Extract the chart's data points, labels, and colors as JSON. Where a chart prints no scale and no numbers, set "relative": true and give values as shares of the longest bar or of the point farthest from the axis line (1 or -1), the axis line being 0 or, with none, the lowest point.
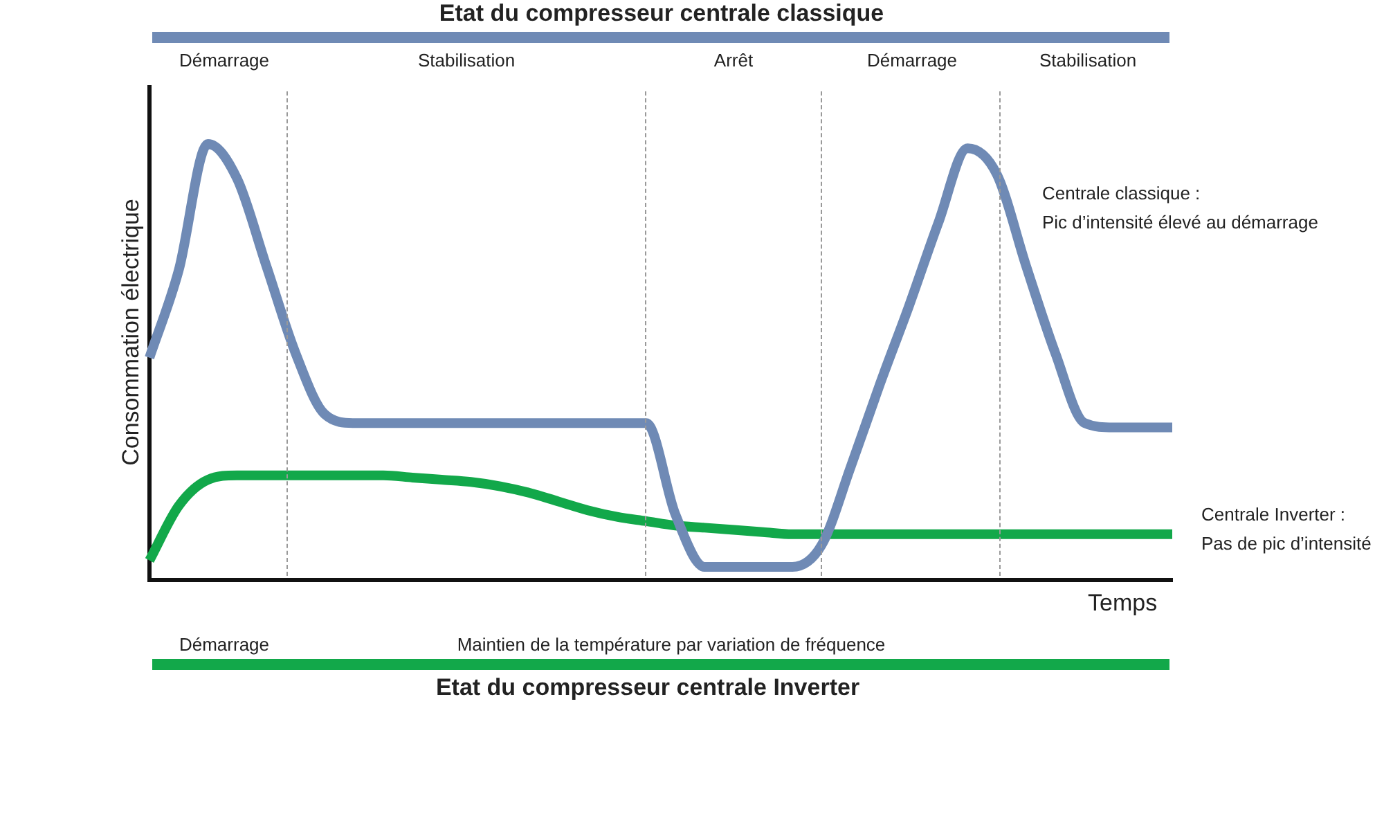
{
  "chart_data": {
    "type": "line",
    "relative": true,
    "title": "Etat du compresseur centrale classique",
    "subtitle": "Etat du compresseur centrale Inverter",
    "xlabel": "Temps",
    "ylabel": "Consommation électrique",
    "marker": "none",
    "legend": false,
    "grid": "x",
    "categories": [
      null,
      null,
      null,
      null,
      null,
      null,
      null,
      null,
      null,
      null,
      null,
      null,
      null,
      null,
      null,
      null,
      null,
      null,
      null,
      null,
      null,
      null,
      null,
      null,
      null,
      null,
      null,
      null,
      null,
      null,
      null,
      null,
      null,
      null,
      null,
      null
    ],
    "series": [
      {
        "color": "#6f8ab5",
        "values": [
          0.51,
          0.71,
          1,
          0.92,
          0.72,
          0.52,
          0.38,
          0.36,
          0.36,
          0.36,
          0.36,
          0.36,
          0.36,
          0.36,
          0.36,
          0.36,
          0.36,
          0.36,
          0.15,
          0.03,
          0.03,
          0.03,
          0.03,
          0.08,
          0.26,
          0.45,
          0.63,
          0.82,
          0.99,
          0.93,
          0.72,
          0.52,
          0.36,
          0.35,
          0.35,
          0.35
        ]
      },
      {
        "color": "#12a84a",
        "values": [
          0.045,
          0.17,
          0.23,
          0.24,
          0.24,
          0.24,
          0.24,
          0.24,
          0.24,
          0.235,
          0.23,
          0.225,
          0.215,
          0.2,
          0.18,
          0.16,
          0.145,
          0.135,
          0.125,
          0.12,
          0.115,
          0.11,
          0.105,
          0.105,
          0.105,
          0.105,
          0.105,
          0.105,
          0.105,
          0.105,
          0.105,
          0.105,
          0.105,
          0.105,
          0.105,
          0.105
        ]
      }
    ],
    "annotations": [
      "Démarrage",
      "Stabilisation",
      "Arrêt",
      "Démarrage",
      "Stabilisation",
      "Démarrage",
      "Maintien de la température par variation de fréquence",
      "Centrale classique :",
      "Pic d’intensité élevé au démarrage",
      "Centrale Inverter :",
      "Pas de pic d’intensité"
    ]
  }
}
